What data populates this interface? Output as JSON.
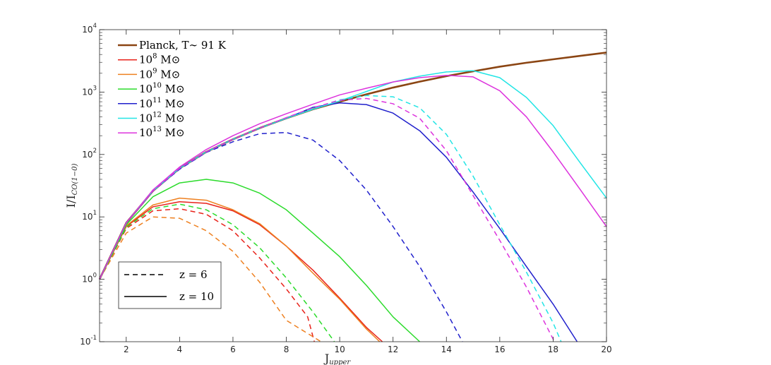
{
  "chart_data": {
    "type": "line",
    "xlabel_main": "J",
    "xlabel_sub": "upper",
    "ylabel_main": "I/I",
    "ylabel_sub": "CO(1−0)",
    "xlim": [
      1,
      20
    ],
    "ylim": [
      0.1,
      10000
    ],
    "yscale": "log",
    "xticks": [
      2,
      4,
      6,
      8,
      10,
      12,
      14,
      16,
      18,
      20
    ],
    "yticks": [
      {
        "value": 0.1,
        "base": "10",
        "exp": "-1"
      },
      {
        "value": 1,
        "base": "10",
        "exp": "0"
      },
      {
        "value": 10,
        "base": "10",
        "exp": "1"
      },
      {
        "value": 100,
        "base": "10",
        "exp": "2"
      },
      {
        "value": 1000,
        "base": "10",
        "exp": "3"
      },
      {
        "value": 10000,
        "base": "10",
        "exp": "4"
      }
    ],
    "grid": false,
    "legend_position": "top-left",
    "series": [
      {
        "name": "Planck, T∼ 91 K",
        "legend_main": "Planck, T∼ 91 K",
        "legend_sup": "",
        "legend_tail": "",
        "color": "#8B4513",
        "dash": "solid",
        "width": 2.6,
        "x": [
          1,
          2,
          3,
          4,
          5,
          6,
          7,
          8,
          9,
          10,
          11,
          12,
          13,
          14,
          15,
          16,
          17,
          18,
          19,
          20
        ],
        "y": [
          1,
          8,
          26,
          60,
          110,
          175,
          265,
          380,
          530,
          700,
          920,
          1180,
          1470,
          1800,
          2150,
          2550,
          2950,
          3350,
          3800,
          4300
        ]
      },
      {
        "name": "10^8 M⊙ z=10",
        "legend_main": "10",
        "legend_sup": "8",
        "legend_tail": " M⊙",
        "color": "#E8221A",
        "dash": "solid",
        "width": 1.5,
        "x": [
          1,
          2,
          3,
          4,
          5,
          6,
          7,
          8,
          9,
          10,
          11,
          11.6
        ],
        "y": [
          1,
          7,
          14.5,
          17.5,
          16.5,
          12.5,
          7.5,
          3.4,
          1.4,
          0.5,
          0.17,
          0.1
        ]
      },
      {
        "name": "10^9 M⊙ z=10",
        "legend_main": "10",
        "legend_sup": "9",
        "legend_tail": " M⊙",
        "color": "#EE8020",
        "dash": "solid",
        "width": 1.5,
        "x": [
          1,
          2,
          3,
          4,
          5,
          6,
          7,
          8,
          9,
          10,
          11,
          11.5
        ],
        "y": [
          1,
          7.2,
          15.5,
          20,
          18.5,
          13,
          7.8,
          3.4,
          1.25,
          0.48,
          0.16,
          0.1
        ]
      },
      {
        "name": "10^10 M⊙ z=10",
        "legend_main": "10",
        "legend_sup": "10",
        "legend_tail": " M⊙",
        "color": "#2CDB2C",
        "dash": "solid",
        "width": 1.5,
        "x": [
          1,
          2,
          3,
          4,
          5,
          6,
          7,
          8,
          9,
          10,
          11,
          12,
          13
        ],
        "y": [
          1,
          7.5,
          21,
          35,
          40,
          35,
          24,
          13,
          5.5,
          2.3,
          0.8,
          0.25,
          0.1
        ]
      },
      {
        "name": "10^11 M⊙ z=10",
        "legend_main": "10",
        "legend_sup": "11",
        "legend_tail": " M⊙",
        "color": "#2020CC",
        "dash": "solid",
        "width": 1.5,
        "x": [
          1,
          2,
          3,
          4,
          5,
          6,
          7,
          8,
          9,
          10,
          11,
          12,
          13,
          14,
          15,
          16,
          17,
          18,
          18.9
        ],
        "y": [
          1,
          8,
          26,
          60,
          110,
          175,
          265,
          380,
          570,
          670,
          630,
          460,
          240,
          90,
          25,
          6.5,
          1.6,
          0.4,
          0.1
        ]
      },
      {
        "name": "10^12 M⊙ z=10",
        "legend_main": "10",
        "legend_sup": "12",
        "legend_tail": " M⊙",
        "color": "#22E5E5",
        "dash": "solid",
        "width": 1.5,
        "x": [
          1,
          2,
          3,
          4,
          5,
          6,
          7,
          8,
          9,
          10,
          11,
          12,
          13,
          14,
          15,
          16,
          17,
          18,
          19,
          20
        ],
        "y": [
          1,
          8,
          26,
          60,
          110,
          175,
          265,
          380,
          530,
          720,
          1020,
          1450,
          1800,
          2100,
          2200,
          1700,
          820,
          290,
          75,
          20
        ]
      },
      {
        "name": "10^13 M⊙ z=10",
        "legend_main": "10",
        "legend_sup": "13",
        "legend_tail": " M⊙",
        "color": "#DD33DD",
        "dash": "solid",
        "width": 1.5,
        "x": [
          1,
          2,
          3,
          4,
          5,
          6,
          7,
          8,
          9,
          10,
          11,
          12,
          13,
          14,
          15,
          16,
          17,
          18,
          19,
          20
        ],
        "y": [
          1,
          8,
          27,
          63,
          120,
          200,
          310,
          450,
          640,
          900,
          1150,
          1450,
          1700,
          1850,
          1750,
          1050,
          400,
          110,
          28,
          7
        ]
      },
      {
        "name": "10^8 M⊙ z=6",
        "legend_main": "",
        "legend_sup": "",
        "legend_tail": "",
        "color": "#E8221A",
        "dash": "dashed",
        "width": 1.5,
        "x": [
          1,
          2,
          3,
          4,
          5,
          6,
          7,
          8,
          8.8,
          9.05
        ],
        "y": [
          1,
          6.5,
          12.5,
          13.5,
          11,
          6,
          2.2,
          0.7,
          0.25,
          0.1
        ]
      },
      {
        "name": "10^9 M⊙ z=6",
        "legend_main": "",
        "legend_sup": "",
        "legend_tail": "",
        "color": "#EE8020",
        "dash": "dashed",
        "width": 1.5,
        "x": [
          1,
          2,
          3,
          4,
          5,
          6,
          7,
          8,
          9,
          9.3
        ],
        "y": [
          1,
          5.5,
          10,
          9.5,
          6,
          2.8,
          0.9,
          0.22,
          0.12,
          0.1
        ]
      },
      {
        "name": "10^10 M⊙ z=6",
        "legend_main": "",
        "legend_sup": "",
        "legend_tail": "",
        "color": "#2CDB2C",
        "dash": "dashed",
        "width": 1.5,
        "x": [
          1,
          2,
          3,
          4,
          5,
          6,
          7,
          8,
          9,
          9.8
        ],
        "y": [
          1,
          6.8,
          13.5,
          16,
          13,
          7.5,
          3.2,
          1.05,
          0.3,
          0.1
        ]
      },
      {
        "name": "10^11 M⊙ z=6",
        "legend_main": "",
        "legend_sup": "",
        "legend_tail": "",
        "color": "#2020CC",
        "dash": "dashed",
        "width": 1.5,
        "x": [
          1,
          2,
          3,
          4,
          5,
          6,
          7,
          8,
          9,
          10,
          11,
          12,
          13,
          14,
          14.6
        ],
        "y": [
          1,
          8,
          26,
          58,
          108,
          160,
          215,
          225,
          170,
          80,
          27,
          7,
          1.6,
          0.3,
          0.1
        ]
      },
      {
        "name": "10^12 M⊙ z=6",
        "legend_main": "",
        "legend_sup": "",
        "legend_tail": "",
        "color": "#22E5E5",
        "dash": "dashed",
        "width": 1.5,
        "x": [
          1,
          2,
          3,
          4,
          5,
          6,
          7,
          8,
          9,
          10,
          11,
          12,
          13,
          14,
          15,
          16,
          17,
          18,
          18.3
        ],
        "y": [
          1,
          8,
          26,
          60,
          110,
          175,
          265,
          380,
          550,
          750,
          880,
          840,
          560,
          210,
          45,
          7.5,
          1.3,
          0.2,
          0.1
        ]
      },
      {
        "name": "10^13 M⊙ z=6",
        "legend_main": "",
        "legend_sup": "",
        "legend_tail": "",
        "color": "#DD33DD",
        "dash": "dashed",
        "width": 1.5,
        "x": [
          1,
          2,
          3,
          4,
          5,
          6,
          7,
          8,
          9,
          10,
          11,
          12,
          13,
          14,
          15,
          16,
          17,
          18,
          18.05
        ],
        "y": [
          1,
          8,
          26,
          60,
          110,
          175,
          265,
          390,
          560,
          740,
          790,
          650,
          380,
          115,
          22,
          4.2,
          0.75,
          0.11,
          0.1
        ]
      }
    ],
    "style_legend": [
      {
        "label": "z = 6",
        "dash": "dashed"
      },
      {
        "label": "z = 10",
        "dash": "solid"
      }
    ]
  }
}
